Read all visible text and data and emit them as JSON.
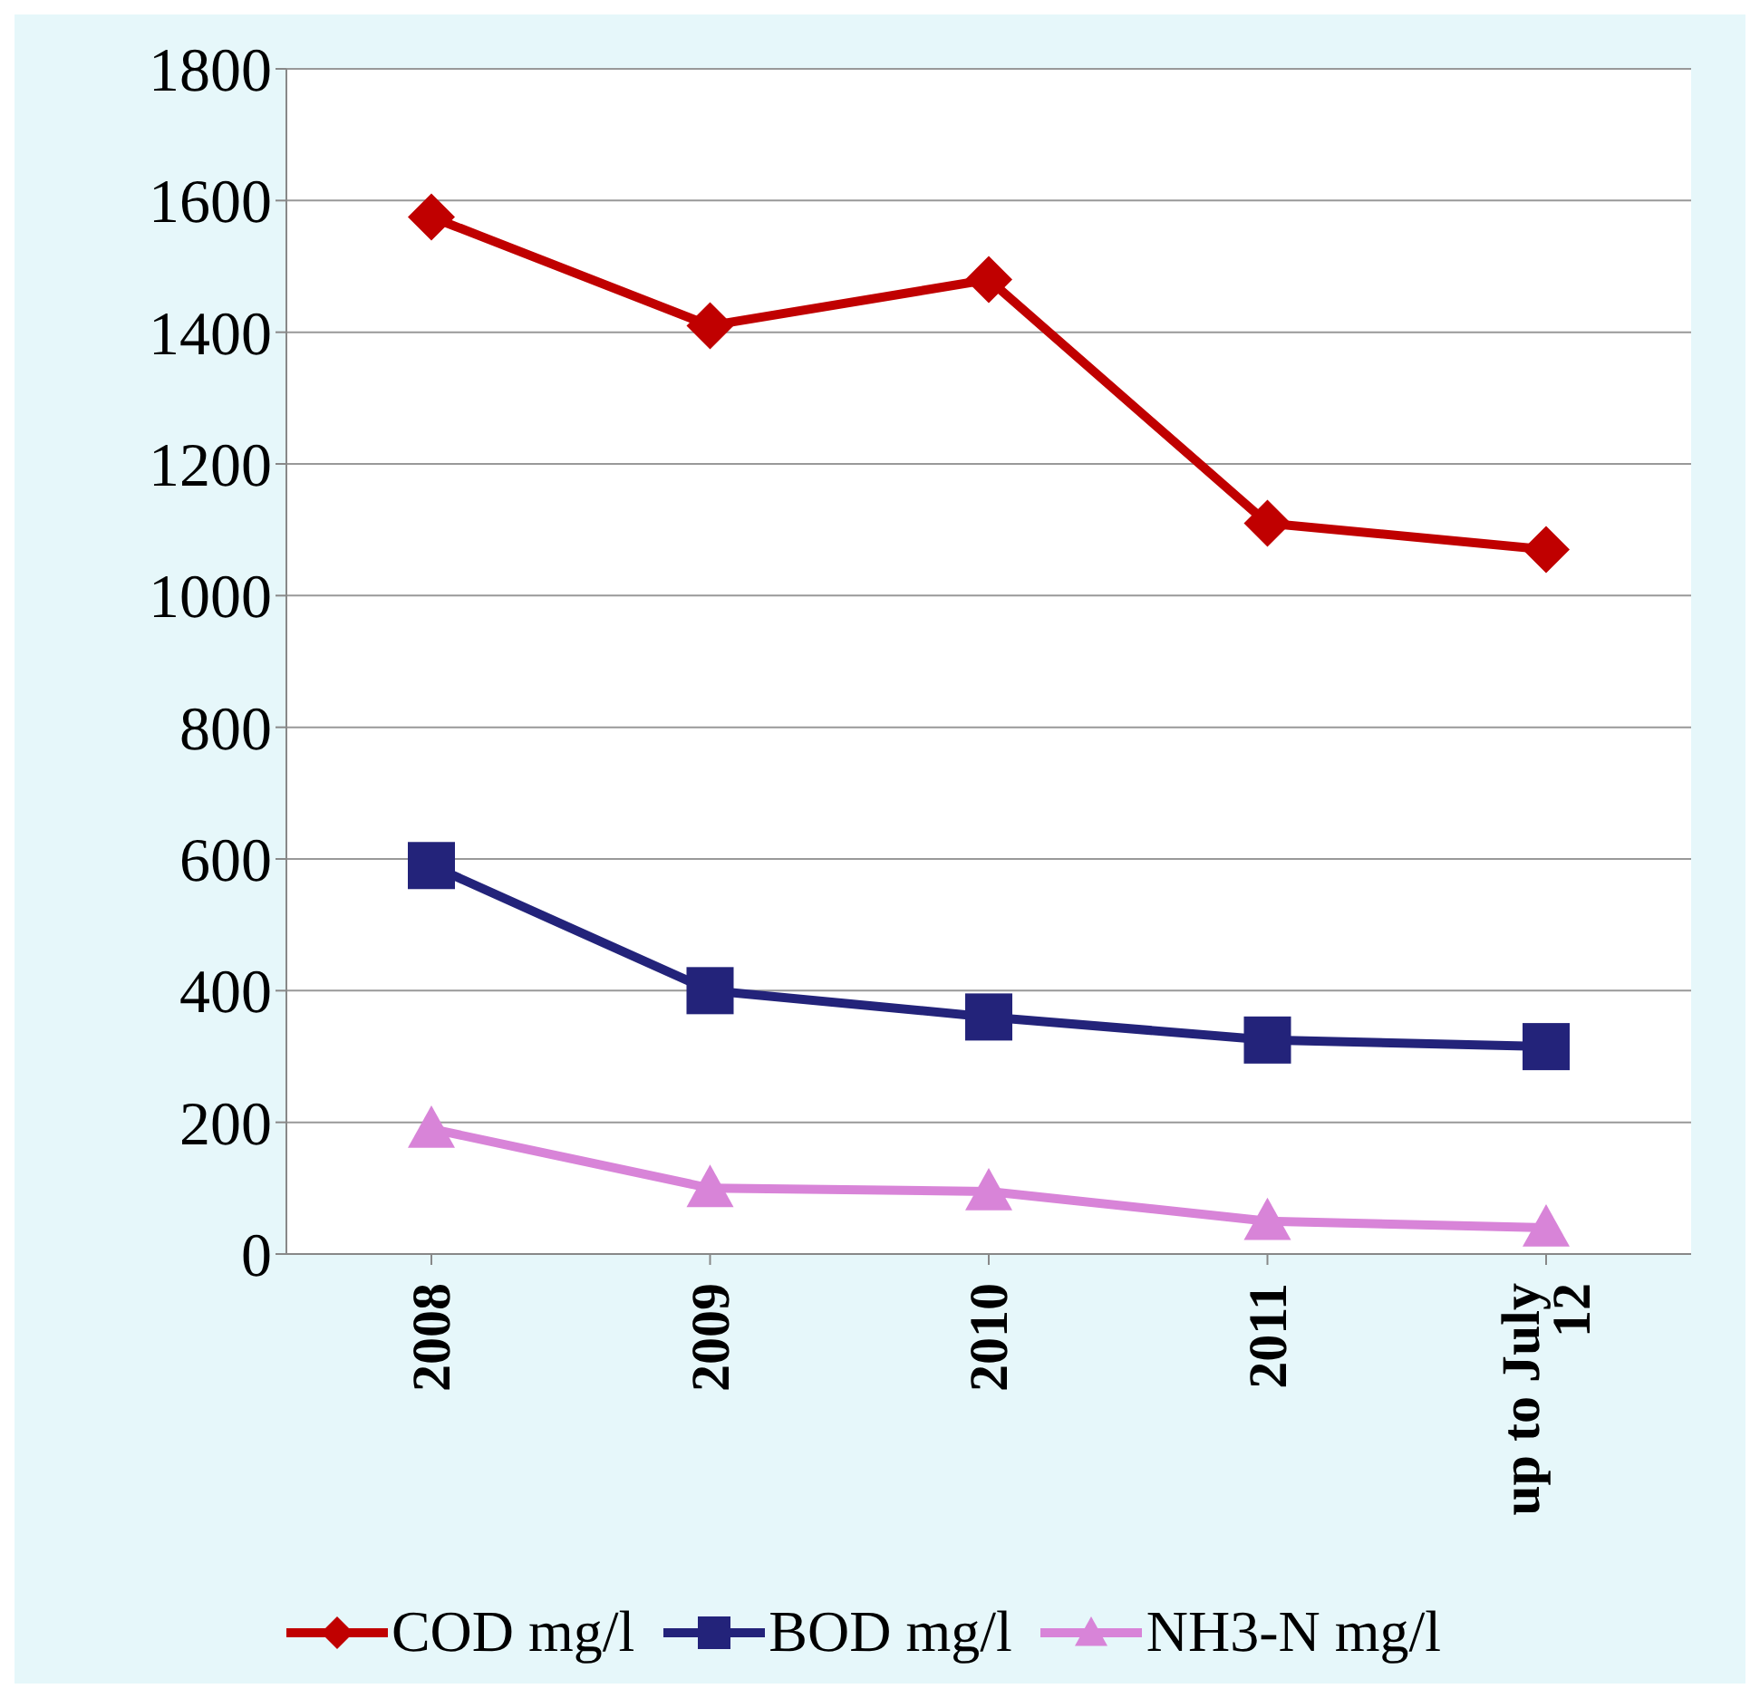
{
  "chart_data": {
    "type": "line",
    "categories": [
      "2008",
      "2009",
      "2010",
      "2011",
      "up to July 12"
    ],
    "series": [
      {
        "name": "COD mg/l",
        "color": "#c00000",
        "marker": "diamond",
        "values": [
          1575,
          1410,
          1480,
          1110,
          1070
        ]
      },
      {
        "name": "BOD mg/l",
        "color": "#23237a",
        "marker": "square",
        "values": [
          590,
          400,
          360,
          325,
          315
        ]
      },
      {
        "name": "NH3-N mg/l",
        "color": "#d884d8",
        "marker": "triangle",
        "values": [
          190,
          100,
          95,
          50,
          40
        ]
      }
    ],
    "ylim": [
      0,
      1800
    ],
    "yticks": [
      0,
      200,
      400,
      600,
      800,
      1000,
      1200,
      1400,
      1600,
      1800
    ],
    "grid": "y",
    "legend": "bottom"
  }
}
